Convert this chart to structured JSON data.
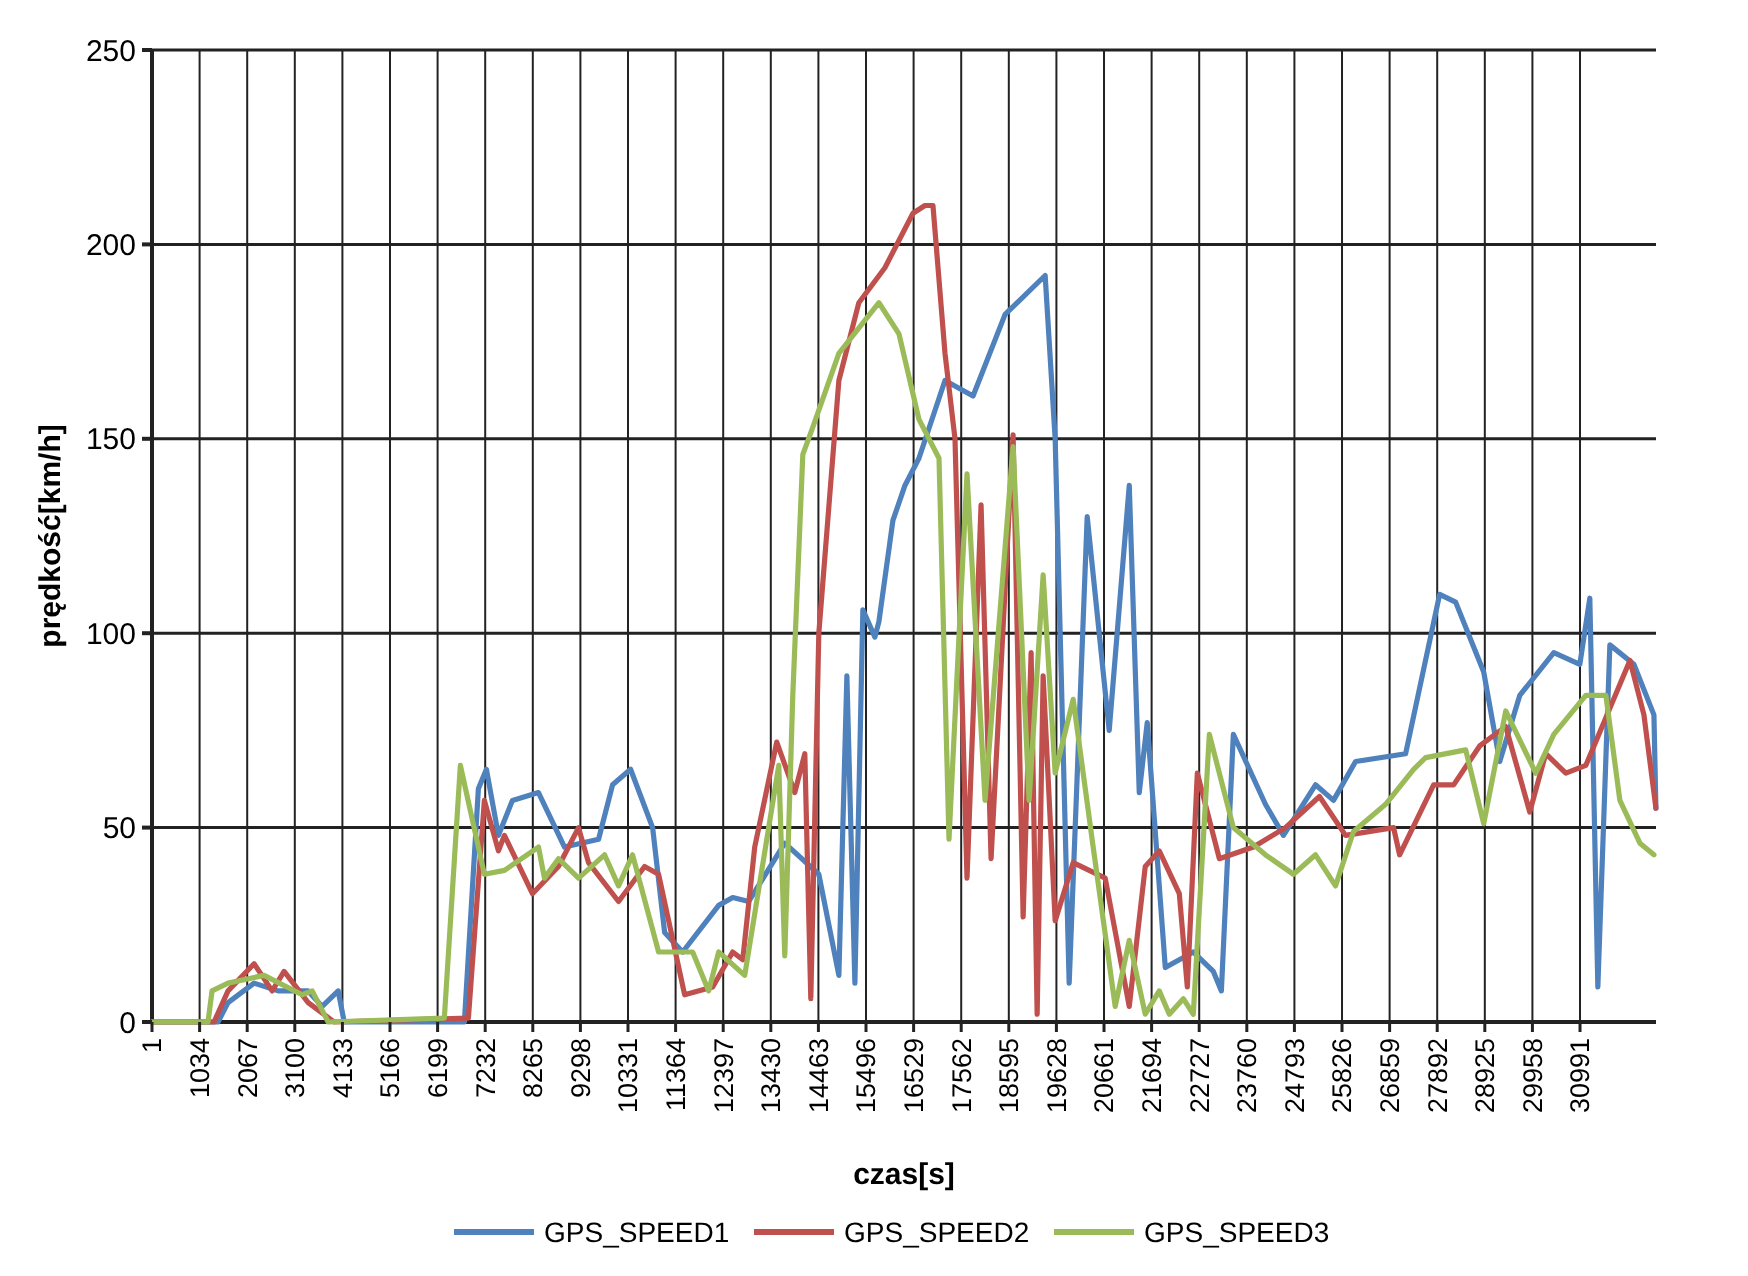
{
  "chart_data": {
    "type": "line",
    "xlabel": "czas[s]",
    "ylabel": "prędkość[km/h]",
    "xlim": [
      1,
      32640
    ],
    "xticks": [
      1,
      1034,
      2067,
      3100,
      4133,
      5166,
      6199,
      7232,
      8265,
      9298,
      10331,
      11364,
      12397,
      13430,
      14463,
      15496,
      16529,
      17562,
      18595,
      19628,
      20661,
      21694,
      22727,
      23760,
      24793,
      25826,
      26859,
      27892,
      28925,
      29958,
      30991
    ],
    "ylim": [
      0,
      250
    ],
    "yticks": [
      0,
      50,
      100,
      150,
      200,
      250
    ],
    "grid": true,
    "legend": "bottom",
    "marker": "none",
    "line_style": "solid",
    "series": [
      {
        "name": "GPS_SPEED1",
        "color": "#4f81bd",
        "x": [
          1,
          1434,
          1651,
          2216,
          2738,
          3390,
          3694,
          4042,
          4172,
          6780,
          7084,
          7258,
          7519,
          7823,
          8388,
          8953,
          9692,
          9996,
          10387,
          10865,
          11126,
          11517,
          12299,
          12603,
          12951,
          13733,
          14472,
          14907,
          15081,
          15255,
          15428,
          15689,
          15776,
          16080,
          16341,
          16645,
          17210,
          17819,
          18514,
          19384,
          19601,
          19905,
          20296,
          20774,
          21209,
          21426,
          21599,
          21991,
          22599,
          23034,
          23208,
          23468,
          24164,
          24555,
          25251,
          25641,
          26120,
          27206,
          27945,
          28292,
          28901,
          29249,
          29683,
          30422,
          30987,
          31204,
          31378,
          31639,
          32160,
          32595,
          32638
        ],
        "values": [
          0,
          0,
          5,
          10,
          8,
          8,
          4,
          8,
          0,
          0,
          60,
          65,
          48,
          57,
          59,
          45,
          47,
          61,
          65,
          50,
          23,
          18,
          30,
          32,
          31,
          46,
          38,
          12,
          89,
          10,
          106,
          99,
          103,
          129,
          138,
          145,
          165,
          161,
          182,
          192,
          150,
          10,
          130,
          75,
          138,
          59,
          77,
          14,
          18,
          13,
          8,
          74,
          56,
          48,
          61,
          57,
          67,
          69,
          110,
          108,
          90,
          67,
          84,
          95,
          92,
          109,
          9,
          97,
          92,
          79,
          55
        ]
      },
      {
        "name": "GPS_SPEED2",
        "color": "#c0504d",
        "x": [
          1,
          1347,
          1651,
          2216,
          2608,
          2868,
          3390,
          3955,
          6867,
          7214,
          7519,
          7649,
          8257,
          8822,
          9257,
          9474,
          10126,
          10691,
          10995,
          11560,
          12169,
          12603,
          12821,
          13081,
          13559,
          13950,
          14168,
          14298,
          14472,
          14907,
          15341,
          15906,
          16515,
          16775,
          16949,
          17210,
          17427,
          17688,
          17993,
          18210,
          18688,
          18906,
          19079,
          19210,
          19340,
          19601,
          19992,
          20687,
          21209,
          21556,
          21860,
          22295,
          22469,
          22686,
          23164,
          23903,
          24599,
          25337,
          25902,
          26945,
          27076,
          27814,
          28249,
          28814,
          29379,
          29900,
          30248,
          30683,
          31117,
          32074,
          32378,
          32638
        ],
        "values": [
          0,
          0,
          8,
          15,
          8,
          13,
          5,
          0,
          1,
          57,
          44,
          48,
          33,
          40,
          50,
          41,
          31,
          40,
          38,
          7,
          9,
          18,
          16,
          45,
          72,
          59,
          69,
          6,
          100,
          165,
          185,
          194,
          208,
          210,
          210,
          172,
          150,
          37,
          133,
          42,
          151,
          27,
          95,
          2,
          89,
          26,
          41,
          37,
          4,
          40,
          44,
          33,
          9,
          64,
          42,
          45,
          50,
          58,
          48,
          50,
          43,
          61,
          61,
          71,
          76,
          54,
          69,
          64,
          66,
          93,
          79,
          55
        ]
      },
      {
        "name": "GPS_SPEED3",
        "color": "#9bbb59",
        "x": [
          1,
          1217,
          1304,
          1651,
          2434,
          3260,
          3477,
          3824,
          6345,
          6693,
          7214,
          7649,
          8388,
          8518,
          8822,
          9257,
          9822,
          10126,
          10430,
          10995,
          11734,
          12082,
          12299,
          12864,
          13603,
          13733,
          13907,
          14125,
          14342,
          14907,
          15776,
          16211,
          16645,
          17080,
          17297,
          17688,
          18079,
          18688,
          19035,
          19340,
          19601,
          19992,
          20426,
          20904,
          21209,
          21556,
          21860,
          22078,
          22382,
          22599,
          22947,
          23468,
          24164,
          24773,
          25251,
          25685,
          26076,
          26772,
          27380,
          27641,
          28510,
          28901,
          29379,
          30031,
          30422,
          31117,
          31552,
          31856,
          32291,
          32595
        ],
        "values": [
          0,
          0,
          8,
          10,
          12,
          7,
          8,
          0,
          1,
          66,
          38,
          39,
          45,
          37,
          42,
          37,
          43,
          35,
          43,
          18,
          18,
          8,
          18,
          12,
          66,
          17,
          84,
          146,
          153,
          172,
          185,
          177,
          155,
          145,
          47,
          141,
          57,
          148,
          57,
          115,
          64,
          83,
          45,
          4,
          21,
          2,
          8,
          2,
          6,
          2,
          74,
          50,
          43,
          38,
          43,
          35,
          49,
          56,
          65,
          68,
          70,
          51,
          80,
          64,
          74,
          84,
          84,
          57,
          46,
          43
        ]
      }
    ]
  }
}
